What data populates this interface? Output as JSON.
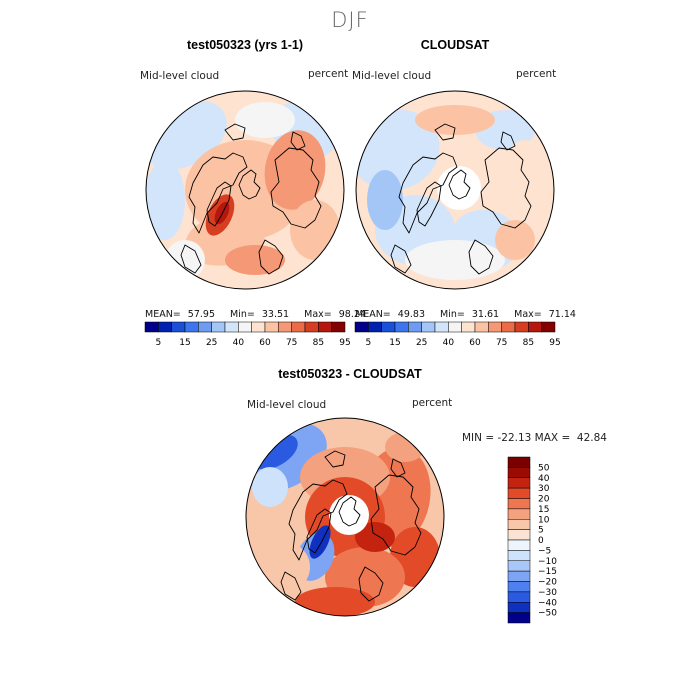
{
  "season_title": "DJF",
  "colors": {
    "abs": [
      "#00008b",
      "#0020b0",
      "#1a4fd8",
      "#3d75ee",
      "#6d9cf2",
      "#a3c6f7",
      "#d3e5fb",
      "#f5f5f5",
      "#fde3d0",
      "#fbc3a4",
      "#f59875",
      "#ea6b46",
      "#d63e22",
      "#b3170e",
      "#840000"
    ],
    "diff": [
      "#00008b",
      "#1030c0",
      "#2a5ae0",
      "#5080ef",
      "#7ea4f4",
      "#a8c6f8",
      "#cfe2fb",
      "#eef4fc",
      "#fbe3d4",
      "#f8c6a8",
      "#f4a17f",
      "#ee7651",
      "#e24a28",
      "#c42310",
      "#9c0a04",
      "#7a0000"
    ]
  },
  "chart_data": [
    {
      "type": "heatmap",
      "projection": "north-polar-stereographic",
      "title": "test050323 (yrs 1-1)",
      "variable_label": "Mid-level cloud",
      "units_label": "percent",
      "stats": {
        "mean_label": "MEAN=",
        "mean": "57.95",
        "min_label": "Min=",
        "min": "33.51",
        "max_label": "Max=",
        "max": "98.24"
      },
      "colorbar_labels": [
        "5",
        "15",
        "25",
        "40",
        "60",
        "75",
        "85",
        "95"
      ]
    },
    {
      "type": "heatmap",
      "projection": "north-polar-stereographic",
      "title": "CLOUDSAT",
      "variable_label": "Mid-level cloud",
      "units_label": "percent",
      "stats": {
        "mean_label": "MEAN=",
        "mean": "49.83",
        "min_label": "Min=",
        "min": "31.61",
        "max_label": "Max=",
        "max": "71.14"
      },
      "colorbar_labels": [
        "5",
        "15",
        "25",
        "40",
        "60",
        "75",
        "85",
        "95"
      ]
    },
    {
      "type": "heatmap",
      "projection": "north-polar-stereographic",
      "title": "test050323 - CLOUDSAT",
      "variable_label": "Mid-level cloud",
      "units_label": "percent",
      "range_text": "MIN = -22.13 MAX =  42.84",
      "colorbar_labels": [
        "50",
        "40",
        "30",
        "20",
        "15",
        "10",
        "5",
        "0",
        "−5",
        "−10",
        "−15",
        "−20",
        "−30",
        "−40",
        "−50"
      ]
    }
  ]
}
